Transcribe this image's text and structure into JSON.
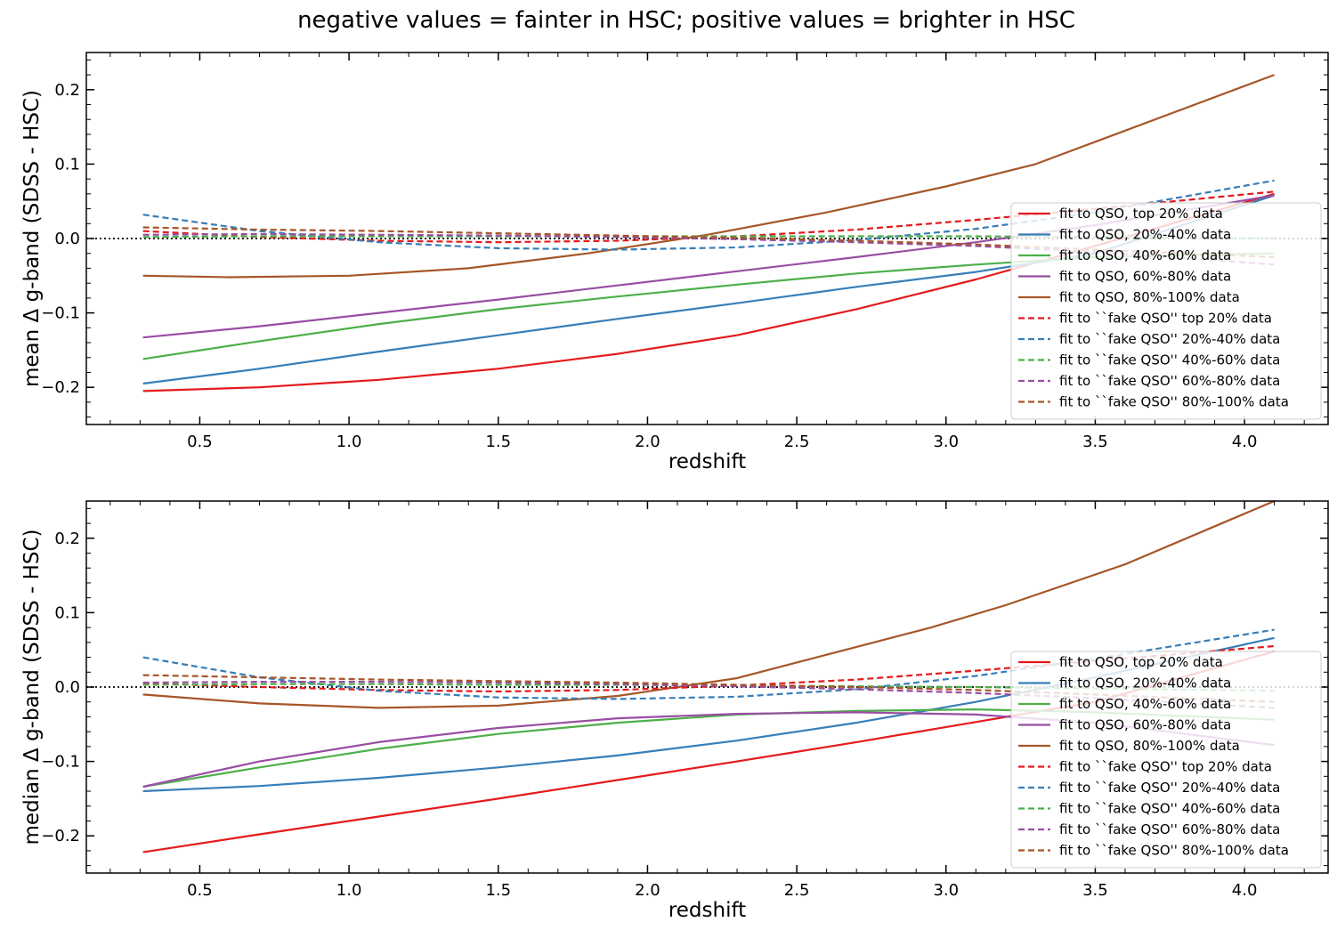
{
  "figure": {
    "suptitle": "negative values = fainter in HSC; positive values = brighter in HSC"
  },
  "legend_labels": [
    "fit to QSO, top 20% data",
    "fit to QSO, 20%-40% data",
    "fit to QSO, 40%-60% data",
    "fit to QSO, 60%-80% data",
    "fit to QSO, 80%-100% data",
    "fit to ``fake QSO'' top 20% data",
    "fit to ``fake QSO'' 20%-40% data",
    "fit to ``fake QSO'' 40%-60% data",
    "fit to ``fake QSO'' 60%-80% data",
    "fit to ``fake QSO'' 80%-100% data"
  ],
  "colors": [
    "#e41a1c",
    "#377eb8",
    "#4daf4a",
    "#984ea3",
    "#a65628"
  ],
  "chart_data": [
    {
      "type": "line",
      "xlabel": "redshift",
      "ylabel": "mean Δ g-band (SDSS - HSC)",
      "xlim": [
        0.12,
        4.28
      ],
      "ylim": [
        -0.25,
        0.25
      ],
      "xticks": [
        "0.5",
        "1.0",
        "1.5",
        "2.0",
        "2.5",
        "3.0",
        "3.5",
        "4.0"
      ],
      "yticks": [
        "−0.2",
        "−0.1",
        "0.0",
        "0.1",
        "0.2"
      ],
      "reference_line": 0.0,
      "legend_position": "lower right",
      "series": [
        {
          "name": "fit to QSO, top 20% data",
          "color": "#e41a1c",
          "style": "solid",
          "x": [
            0.31,
            0.7,
            1.1,
            1.5,
            1.9,
            2.3,
            2.7,
            3.1,
            3.5,
            4.1
          ],
          "y": [
            -0.205,
            -0.2,
            -0.19,
            -0.175,
            -0.155,
            -0.13,
            -0.095,
            -0.055,
            -0.01,
            0.06
          ]
        },
        {
          "name": "fit to QSO, 20%-40% data",
          "color": "#377eb8",
          "style": "solid",
          "x": [
            0.31,
            0.7,
            1.1,
            1.5,
            1.9,
            2.3,
            2.7,
            3.1,
            3.5,
            4.1
          ],
          "y": [
            -0.195,
            -0.175,
            -0.152,
            -0.13,
            -0.108,
            -0.087,
            -0.065,
            -0.045,
            -0.02,
            0.058
          ]
        },
        {
          "name": "fit to QSO, 40%-60% data",
          "color": "#4daf4a",
          "style": "solid",
          "x": [
            0.31,
            0.7,
            1.1,
            1.5,
            1.9,
            2.3,
            2.7,
            3.1,
            3.5,
            4.1
          ],
          "y": [
            -0.162,
            -0.138,
            -0.115,
            -0.095,
            -0.078,
            -0.062,
            -0.047,
            -0.035,
            -0.025,
            -0.02
          ]
        },
        {
          "name": "fit to QSO, 60%-80% data",
          "color": "#984ea3",
          "style": "solid",
          "x": [
            0.31,
            0.7,
            1.1,
            1.5,
            1.9,
            2.3,
            2.7,
            3.1,
            3.5,
            4.1
          ],
          "y": [
            -0.133,
            -0.118,
            -0.1,
            -0.082,
            -0.063,
            -0.044,
            -0.025,
            -0.005,
            0.018,
            0.058
          ]
        },
        {
          "name": "fit to QSO, 80%-100% data",
          "color": "#a65628",
          "style": "solid",
          "x": [
            0.31,
            0.6,
            1.0,
            1.4,
            1.8,
            2.2,
            2.6,
            3.0,
            3.3,
            3.6,
            4.1
          ],
          "y": [
            -0.05,
            -0.052,
            -0.05,
            -0.04,
            -0.02,
            0.005,
            0.035,
            0.07,
            0.1,
            0.145,
            0.22
          ]
        },
        {
          "name": "fit to ``fake QSO'' top 20% data",
          "color": "#e41a1c",
          "style": "dashed",
          "x": [
            0.31,
            0.7,
            1.1,
            1.5,
            1.9,
            2.3,
            2.7,
            3.1,
            3.5,
            4.1
          ],
          "y": [
            0.01,
            0.002,
            -0.003,
            -0.005,
            -0.003,
            0.003,
            0.012,
            0.025,
            0.04,
            0.063
          ]
        },
        {
          "name": "fit to ``fake QSO'' 20%-40% data",
          "color": "#377eb8",
          "style": "dashed",
          "x": [
            0.31,
            0.7,
            1.1,
            1.5,
            1.9,
            2.3,
            2.7,
            3.1,
            3.5,
            4.1
          ],
          "y": [
            0.032,
            0.01,
            -0.005,
            -0.013,
            -0.015,
            -0.012,
            -0.002,
            0.013,
            0.035,
            0.078
          ]
        },
        {
          "name": "fit to ``fake QSO'' 40%-60% data",
          "color": "#4daf4a",
          "style": "dashed",
          "x": [
            0.31,
            0.7,
            1.1,
            1.5,
            1.9,
            2.3,
            2.7,
            3.1,
            3.5,
            4.1
          ],
          "y": [
            0.002,
            0.003,
            0.003,
            0.003,
            0.003,
            0.003,
            0.003,
            0.003,
            0.002,
            0.0
          ]
        },
        {
          "name": "fit to ``fake QSO'' 60%-80% data",
          "color": "#984ea3",
          "style": "dashed",
          "x": [
            0.31,
            0.7,
            1.1,
            1.5,
            1.9,
            2.3,
            2.7,
            3.1,
            3.5,
            4.1
          ],
          "y": [
            0.005,
            0.006,
            0.005,
            0.004,
            0.002,
            -0.001,
            -0.005,
            -0.01,
            -0.018,
            -0.035
          ]
        },
        {
          "name": "fit to ``fake QSO'' 80%-100% data",
          "color": "#a65628",
          "style": "dashed",
          "x": [
            0.31,
            0.7,
            1.1,
            1.5,
            1.9,
            2.3,
            2.7,
            3.1,
            3.5,
            4.1
          ],
          "y": [
            0.015,
            0.012,
            0.01,
            0.007,
            0.004,
            0.001,
            -0.003,
            -0.008,
            -0.015,
            -0.025
          ]
        }
      ]
    },
    {
      "type": "line",
      "xlabel": "redshift",
      "ylabel": "median Δ g-band (SDSS - HSC)",
      "xlim": [
        0.12,
        4.28
      ],
      "ylim": [
        -0.25,
        0.25
      ],
      "xticks": [
        "0.5",
        "1.0",
        "1.5",
        "2.0",
        "2.5",
        "3.0",
        "3.5",
        "4.0"
      ],
      "yticks": [
        "−0.2",
        "−0.1",
        "0.0",
        "0.1",
        "0.2"
      ],
      "reference_line": 0.0,
      "legend_position": "lower right",
      "series": [
        {
          "name": "fit to QSO, top 20% data",
          "color": "#e41a1c",
          "style": "solid",
          "x": [
            0.31,
            0.7,
            1.1,
            1.5,
            1.9,
            2.3,
            2.7,
            3.1,
            3.5,
            4.1
          ],
          "y": [
            -0.222,
            -0.198,
            -0.174,
            -0.15,
            -0.125,
            -0.1,
            -0.074,
            -0.047,
            -0.02,
            0.048
          ]
        },
        {
          "name": "fit to QSO, 20%-40% data",
          "color": "#377eb8",
          "style": "solid",
          "x": [
            0.31,
            0.7,
            1.1,
            1.5,
            1.9,
            2.3,
            2.7,
            3.1,
            3.5,
            4.1
          ],
          "y": [
            -0.14,
            -0.133,
            -0.122,
            -0.108,
            -0.092,
            -0.072,
            -0.048,
            -0.02,
            0.013,
            0.066
          ]
        },
        {
          "name": "fit to QSO, 40%-60% data",
          "color": "#4daf4a",
          "style": "solid",
          "x": [
            0.31,
            0.7,
            1.1,
            1.5,
            1.9,
            2.3,
            2.7,
            3.1,
            3.5,
            4.1
          ],
          "y": [
            -0.134,
            -0.108,
            -0.083,
            -0.063,
            -0.048,
            -0.037,
            -0.032,
            -0.03,
            -0.034,
            -0.044
          ]
        },
        {
          "name": "fit to QSO, 60%-80% data",
          "color": "#984ea3",
          "style": "solid",
          "x": [
            0.31,
            0.7,
            1.1,
            1.5,
            1.9,
            2.3,
            2.7,
            3.1,
            3.5,
            4.1
          ],
          "y": [
            -0.134,
            -0.1,
            -0.074,
            -0.055,
            -0.042,
            -0.036,
            -0.034,
            -0.037,
            -0.048,
            -0.078
          ]
        },
        {
          "name": "fit to QSO, 80%-100% data",
          "color": "#a65628",
          "style": "solid",
          "x": [
            0.31,
            0.7,
            1.1,
            1.5,
            1.9,
            2.3,
            2.7,
            2.95,
            3.2,
            3.6,
            4.1
          ],
          "y": [
            -0.01,
            -0.022,
            -0.028,
            -0.025,
            -0.012,
            0.012,
            0.054,
            0.08,
            0.11,
            0.165,
            0.25
          ]
        },
        {
          "name": "fit to ``fake QSO'' top 20% data",
          "color": "#e41a1c",
          "style": "dashed",
          "x": [
            0.31,
            0.7,
            1.1,
            1.5,
            1.9,
            2.3,
            2.7,
            3.1,
            3.5,
            4.1
          ],
          "y": [
            0.005,
            0.0,
            -0.004,
            -0.006,
            -0.004,
            0.002,
            0.01,
            0.022,
            0.035,
            0.055
          ]
        },
        {
          "name": "fit to ``fake QSO'' 20%-40% data",
          "color": "#377eb8",
          "style": "dashed",
          "x": [
            0.31,
            0.7,
            1.1,
            1.5,
            1.9,
            2.3,
            2.7,
            3.1,
            3.5,
            4.1
          ],
          "y": [
            0.04,
            0.013,
            -0.005,
            -0.014,
            -0.016,
            -0.013,
            -0.003,
            0.015,
            0.038,
            0.077
          ]
        },
        {
          "name": "fit to ``fake QSO'' 40%-60% data",
          "color": "#4daf4a",
          "style": "dashed",
          "x": [
            0.31,
            0.7,
            1.1,
            1.5,
            1.9,
            2.3,
            2.7,
            3.1,
            3.5,
            4.1
          ],
          "y": [
            0.003,
            0.004,
            0.004,
            0.003,
            0.003,
            0.002,
            0.001,
            0.0,
            -0.002,
            -0.005
          ]
        },
        {
          "name": "fit to ``fake QSO'' 60%-80% data",
          "color": "#984ea3",
          "style": "dashed",
          "x": [
            0.31,
            0.7,
            1.1,
            1.5,
            1.9,
            2.3,
            2.7,
            3.1,
            3.5,
            4.1
          ],
          "y": [
            0.006,
            0.007,
            0.007,
            0.006,
            0.004,
            0.001,
            -0.003,
            -0.008,
            -0.015,
            -0.028
          ]
        },
        {
          "name": "fit to ``fake QSO'' 80%-100% data",
          "color": "#a65628",
          "style": "dashed",
          "x": [
            0.31,
            0.7,
            1.1,
            1.5,
            1.9,
            2.3,
            2.7,
            3.1,
            3.5,
            4.1
          ],
          "y": [
            0.016,
            0.013,
            0.01,
            0.008,
            0.006,
            0.003,
            0.0,
            -0.004,
            -0.01,
            -0.02
          ]
        }
      ]
    }
  ]
}
